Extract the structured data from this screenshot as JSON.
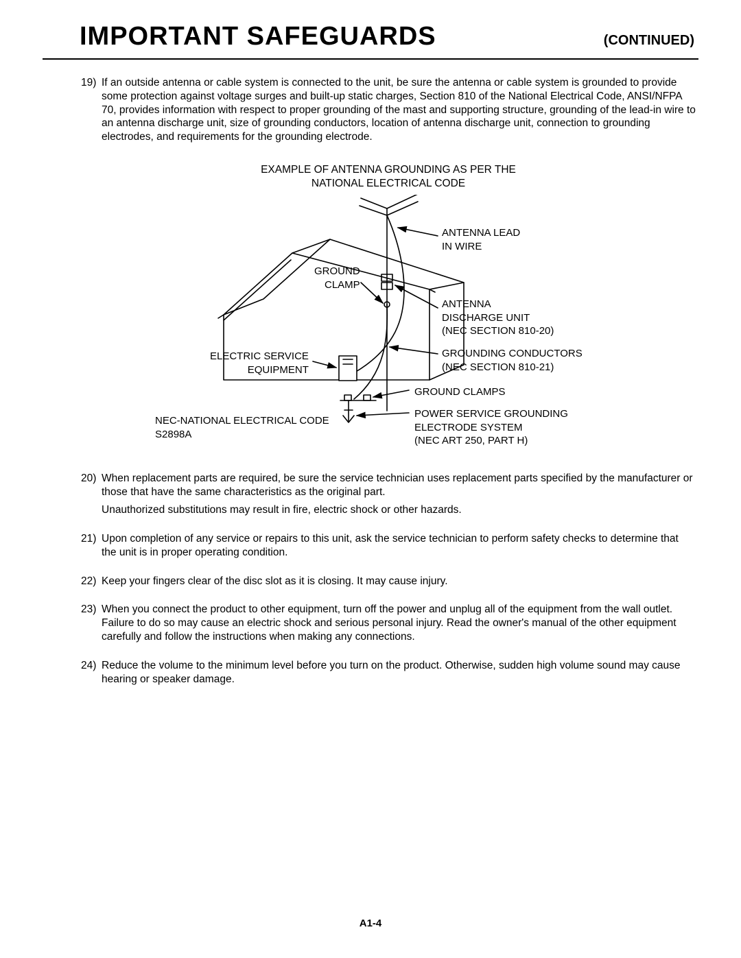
{
  "header": {
    "title": "IMPORTANT SAFEGUARDS",
    "continued": "(CONTINUED)"
  },
  "colors": {
    "text": "#000000",
    "background": "#ffffff",
    "rule": "#000000",
    "diagram_stroke": "#000000"
  },
  "typography": {
    "title_fontsize_pt": 28,
    "continued_fontsize_pt": 15,
    "body_fontsize_pt": 11.5,
    "label_fontsize_pt": 11,
    "title_weight": "bold",
    "body_font_family": "Arial, Helvetica, sans-serif"
  },
  "items": [
    {
      "num": "19)",
      "text": "If an outside antenna or cable system is connected to the unit, be sure the antenna or cable system is grounded to provide some protection against voltage surges and built-up static charges, Section 810 of the National Electrical Code, ANSI/NFPA 70, provides information with respect to proper grounding of the mast and supporting structure, grounding of the lead-in wire to an antenna discharge unit, size of grounding conductors, location of antenna discharge unit, connection to grounding electrodes, and requirements for the grounding electrode."
    },
    {
      "num": "20)",
      "text": "When replacement parts are required, be sure the service technician uses replacement parts specified by the manufacturer or those that have the same characteristics as the original part.",
      "sub": "Unauthorized substitutions may result in fire, electric shock or other hazards."
    },
    {
      "num": "21)",
      "text": "Upon completion of any service or repairs to this unit, ask the service technician to perform safety checks to determine that the unit is in proper operating condition."
    },
    {
      "num": "22)",
      "text": "Keep your fingers clear of the disc slot as it is closing. It may cause injury."
    },
    {
      "num": "23)",
      "text": "When you connect the product to other equipment, turn off the power and unplug all of the equipment  from the wall outlet. Failure to do so may cause an electric shock and serious personal injury. Read the owner's manual of the other equipment carefully and follow the instructions when making any connections."
    },
    {
      "num": "24)",
      "text": "Reduce the volume to the minimum level before you turn on the product. Otherwise, sudden high volume sound may cause hearing or speaker damage."
    }
  ],
  "figure": {
    "caption_line1": "EXAMPLE OF ANTENNA GROUNDING AS PER THE",
    "caption_line2": "NATIONAL ELECTRICAL CODE",
    "labels": {
      "antenna_lead": "ANTENNA LEAD\nIN WIRE",
      "ground_clamp_top": "GROUND\nCLAMP",
      "antenna_discharge": "ANTENNA\nDISCHARGE UNIT\n(NEC SECTION 810-20)",
      "electric_service": "ELECTRIC SERVICE\nEQUIPMENT",
      "grounding_conductors": "GROUNDING CONDUCTORS\n(NEC SECTION 810-21)",
      "ground_clamps_bottom": "GROUND CLAMPS",
      "power_service": "POWER SERVICE GROUNDING\nELECTRODE SYSTEM\n(NEC ART 250, PART H)",
      "nec_code": "NEC-NATIONAL ELECTRICAL CODE\nS2898A"
    },
    "stroke_width": 1.6,
    "arrow_size": 8
  },
  "page_number": "A1-4"
}
